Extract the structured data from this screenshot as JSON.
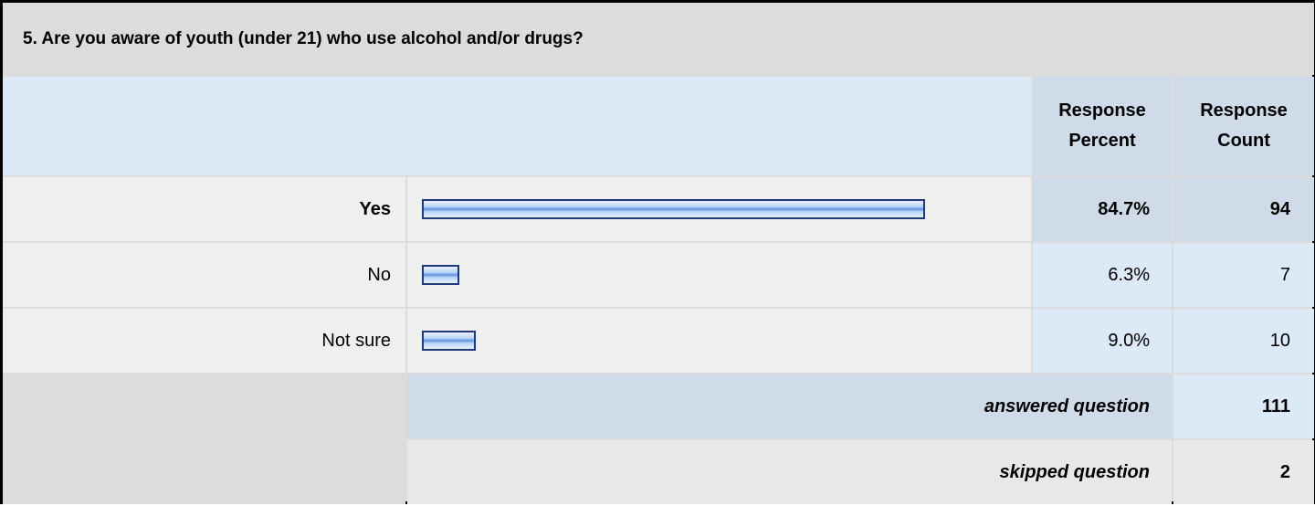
{
  "question": {
    "title": "5. Are you aware of youth (under 21) who use alcohol and/or drugs?"
  },
  "header": {
    "percent_line1": "Response",
    "percent_line2": "Percent",
    "count_line1": "Response",
    "count_line2": "Count"
  },
  "rows": [
    {
      "label": "Yes",
      "percent": "84.7%",
      "count": "94",
      "fraction": 0.847
    },
    {
      "label": "No",
      "percent": "6.3%",
      "count": "7",
      "fraction": 0.063
    },
    {
      "label": "Not sure",
      "percent": "9.0%",
      "count": "10",
      "fraction": 0.09
    }
  ],
  "summary": {
    "answered_label": "answered question",
    "answered_value": "111",
    "skipped_label": "skipped question",
    "skipped_value": "2"
  },
  "colors": {
    "bar_border": "#1f3a78",
    "bar_fill": "#5e97e0",
    "header_blue": "#dce9f7",
    "title_gray": "#dcdcdc"
  }
}
